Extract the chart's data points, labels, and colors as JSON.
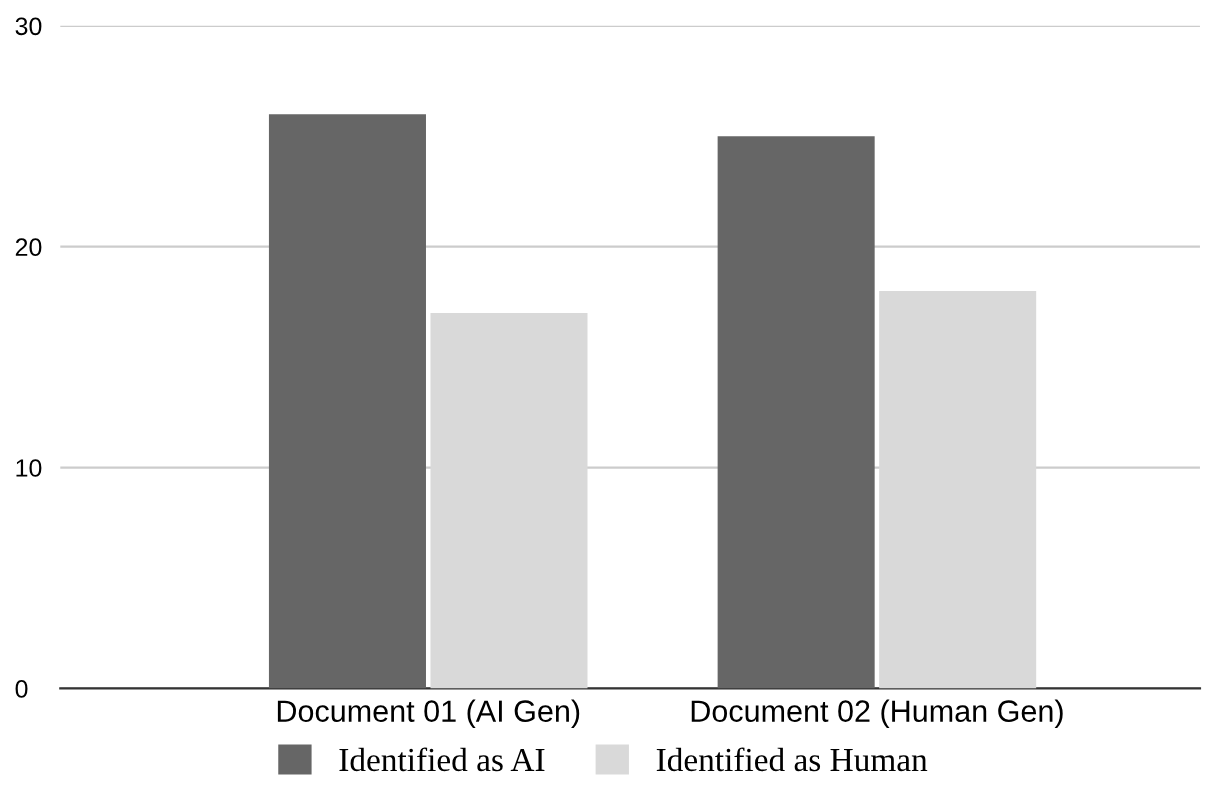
{
  "chart_data": {
    "type": "bar",
    "categories": [
      "Document 01 (AI Gen)",
      "Document 02 (Human Gen)"
    ],
    "series": [
      {
        "name": "Identified as AI",
        "color": "#666666",
        "values": [
          26,
          25
        ]
      },
      {
        "name": "Identified as Human",
        "color": "#d9d9d9",
        "values": [
          17,
          18
        ]
      }
    ],
    "ylim": [
      0,
      30
    ],
    "yticks": [
      0,
      10,
      20,
      30
    ],
    "grid": "y",
    "legend": "bottom"
  }
}
